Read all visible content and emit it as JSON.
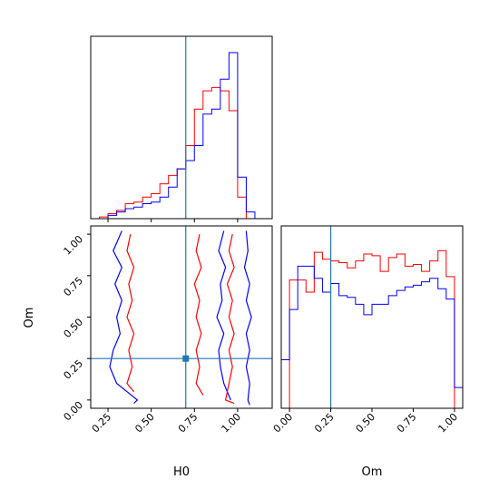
{
  "chart_data": [
    {
      "type": "area",
      "panel": "H0 marginal histogram (top-left)",
      "xlim": [
        0.15,
        1.2
      ],
      "x_ticks": [
        0.25,
        0.5,
        0.75,
        1.0
      ],
      "truth_value": 0.7,
      "series": [
        {
          "color": "#ff0000",
          "bin_edges": [
            0.15,
            0.2,
            0.25,
            0.3,
            0.35,
            0.4,
            0.45,
            0.5,
            0.55,
            0.6,
            0.65,
            0.7,
            0.75,
            0.8,
            0.85,
            0.9,
            0.95,
            1.0,
            1.05,
            1.1,
            1.15,
            1.2
          ],
          "counts": [
            0,
            0.01,
            0.03,
            0.05,
            0.09,
            0.1,
            0.13,
            0.15,
            0.21,
            0.26,
            0.3,
            0.44,
            0.66,
            0.77,
            0.79,
            0.77,
            0.65,
            0.13,
            0,
            0,
            0
          ]
        },
        {
          "color": "#0000ff",
          "bin_edges": [
            0.15,
            0.2,
            0.25,
            0.3,
            0.35,
            0.4,
            0.45,
            0.5,
            0.55,
            0.6,
            0.65,
            0.7,
            0.75,
            0.8,
            0.85,
            0.9,
            0.95,
            1.0,
            1.05,
            1.1,
            1.15,
            1.2
          ],
          "counts": [
            0,
            0,
            0.02,
            0.04,
            0.06,
            0.07,
            0.09,
            0.1,
            0.13,
            0.19,
            0.3,
            0.35,
            0.44,
            0.63,
            0.66,
            0.84,
            1.0,
            0.25,
            0.04,
            0,
            0
          ]
        }
      ]
    },
    {
      "type": "area",
      "panel": "Om marginal histogram (bottom-right)",
      "xlim": [
        -0.05,
        1.05
      ],
      "x_ticks": [
        0.0,
        0.25,
        0.5,
        0.75,
        1.0
      ],
      "x_tick_labels": [
        "0.00",
        "0.25",
        "0.50",
        "0.75",
        "1.00"
      ],
      "xlabel": "Om",
      "truth_value": 0.25,
      "series": [
        {
          "color": "#ff0000",
          "bin_edges": [
            0.0,
            0.05,
            0.1,
            0.15,
            0.2,
            0.25,
            0.3,
            0.35,
            0.4,
            0.45,
            0.5,
            0.55,
            0.6,
            0.65,
            0.7,
            0.75,
            0.8,
            0.85,
            0.9,
            0.95,
            1.0
          ],
          "counts": [
            0.74,
            0.74,
            0.67,
            0.9,
            0.86,
            0.85,
            0.84,
            0.81,
            0.85,
            0.89,
            0.88,
            0.79,
            0.87,
            0.89,
            0.82,
            0.83,
            0.79,
            0.85,
            0.91,
            0.76
          ]
        },
        {
          "color": "#0000ff",
          "bin_edges": [
            -0.05,
            0.0,
            0.05,
            0.1,
            0.15,
            0.2,
            0.25,
            0.3,
            0.35,
            0.4,
            0.45,
            0.5,
            0.55,
            0.6,
            0.65,
            0.7,
            0.75,
            0.8,
            0.85,
            0.9,
            0.95,
            1.0,
            1.05
          ],
          "counts": [
            0.28,
            0.57,
            0.82,
            0.82,
            0.75,
            0.67,
            0.72,
            0.65,
            0.64,
            0.6,
            0.54,
            0.6,
            0.6,
            0.65,
            0.68,
            0.7,
            0.71,
            0.73,
            0.75,
            0.69,
            0.63,
            0.12
          ]
        }
      ]
    },
    {
      "type": "contour",
      "panel": "Om vs H0 joint density (bottom-left)",
      "xlabel": "H0",
      "ylabel": "Om",
      "xlim": [
        0.15,
        1.2
      ],
      "ylim": [
        -0.05,
        1.05
      ],
      "x_ticks": [
        0.25,
        0.5,
        0.75,
        1.0
      ],
      "x_tick_labels": [
        "0.25",
        "0.50",
        "0.75",
        "1.00"
      ],
      "y_ticks": [
        0.0,
        0.25,
        0.5,
        0.75,
        1.0
      ],
      "y_tick_labels": [
        "0.00",
        "0.25",
        "0.50",
        "0.75",
        "1.00"
      ],
      "truth_point": [
        0.7,
        0.25
      ],
      "contours": [
        {
          "color": "#0000ff",
          "points": [
            [
              0.33,
              1.02
            ],
            [
              0.28,
              0.9
            ],
            [
              0.33,
              0.8
            ],
            [
              0.29,
              0.7
            ],
            [
              0.33,
              0.6
            ],
            [
              0.3,
              0.5
            ],
            [
              0.32,
              0.4
            ],
            [
              0.28,
              0.3
            ],
            [
              0.26,
              0.2
            ],
            [
              0.3,
              0.1
            ],
            [
              0.36,
              0.05
            ],
            [
              0.42,
              0.0
            ],
            [
              0.4,
              -0.02
            ]
          ]
        },
        {
          "color": "#0000ff",
          "points": [
            [
              1.05,
              1.02
            ],
            [
              1.06,
              0.9
            ],
            [
              1.04,
              0.8
            ],
            [
              1.07,
              0.7
            ],
            [
              1.05,
              0.6
            ],
            [
              1.08,
              0.5
            ],
            [
              1.05,
              0.4
            ],
            [
              1.07,
              0.3
            ],
            [
              1.05,
              0.2
            ],
            [
              1.07,
              0.1
            ],
            [
              1.06,
              0.0
            ],
            [
              1.07,
              -0.03
            ]
          ]
        },
        {
          "color": "#0000ff",
          "points": [
            [
              0.92,
              1.02
            ],
            [
              0.89,
              0.9
            ],
            [
              0.93,
              0.8
            ],
            [
              0.9,
              0.7
            ],
            [
              0.91,
              0.6
            ],
            [
              0.88,
              0.5
            ],
            [
              0.92,
              0.4
            ],
            [
              0.89,
              0.3
            ],
            [
              0.9,
              0.2
            ],
            [
              0.92,
              0.1
            ],
            [
              0.96,
              0.0
            ]
          ]
        },
        {
          "color": "#ff0000",
          "points": [
            [
              0.38,
              1.0
            ],
            [
              0.36,
              0.9
            ],
            [
              0.4,
              0.8
            ],
            [
              0.37,
              0.7
            ],
            [
              0.39,
              0.6
            ],
            [
              0.36,
              0.5
            ],
            [
              0.4,
              0.4
            ],
            [
              0.37,
              0.3
            ],
            [
              0.39,
              0.2
            ],
            [
              0.36,
              0.1
            ],
            [
              0.4,
              0.05
            ]
          ]
        },
        {
          "color": "#ff0000",
          "points": [
            [
              0.78,
              1.0
            ],
            [
              0.76,
              0.9
            ],
            [
              0.79,
              0.8
            ],
            [
              0.75,
              0.7
            ],
            [
              0.78,
              0.6
            ],
            [
              0.76,
              0.5
            ],
            [
              0.79,
              0.4
            ],
            [
              0.76,
              0.3
            ],
            [
              0.78,
              0.2
            ],
            [
              0.76,
              0.1
            ],
            [
              0.8,
              0.03
            ]
          ]
        },
        {
          "color": "#ff0000",
          "points": [
            [
              0.97,
              1.0
            ],
            [
              0.95,
              0.9
            ],
            [
              0.98,
              0.8
            ],
            [
              0.94,
              0.7
            ],
            [
              0.97,
              0.6
            ],
            [
              0.95,
              0.5
            ],
            [
              0.98,
              0.4
            ],
            [
              0.95,
              0.3
            ],
            [
              0.97,
              0.2
            ],
            [
              0.95,
              0.1
            ],
            [
              0.93,
              0.0
            ],
            [
              0.98,
              -0.02
            ]
          ]
        }
      ]
    }
  ]
}
